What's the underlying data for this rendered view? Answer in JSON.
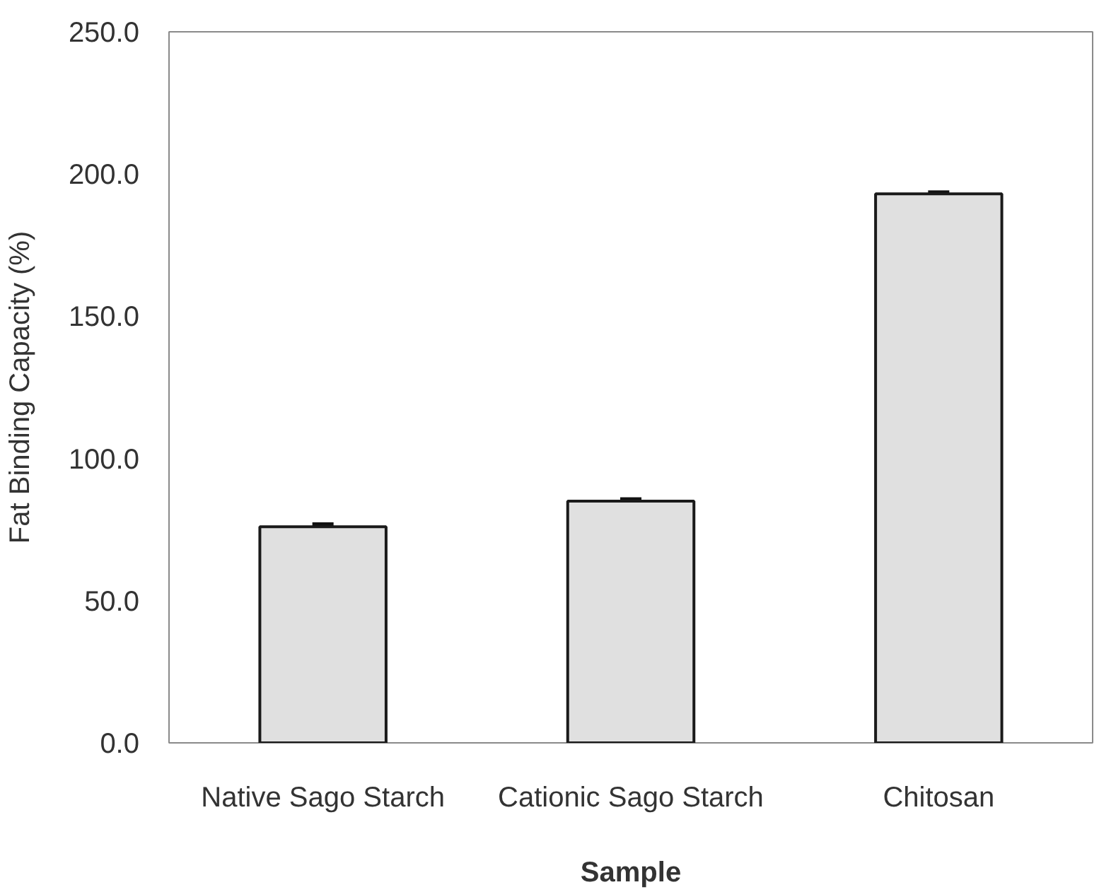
{
  "chart_data": {
    "type": "bar",
    "xlabel": "Sample",
    "ylabel": "Fat Binding Capacity (%)",
    "categories": [
      "Native Sago Starch",
      "Cationic Sago Starch",
      "Chitosan"
    ],
    "values": [
      76,
      85,
      193
    ],
    "errors": [
      0.8,
      0.6,
      0.5
    ],
    "color": "#e0e0e0",
    "ylim": [
      0,
      250
    ],
    "yticks": [
      {
        "value": 0,
        "label": "0.0"
      },
      {
        "value": 50,
        "label": "50.0"
      },
      {
        "value": 100,
        "label": "100.0"
      },
      {
        "value": 150,
        "label": "150.0"
      },
      {
        "value": 200,
        "label": "200.0"
      },
      {
        "value": 250,
        "label": "250.0"
      }
    ]
  }
}
